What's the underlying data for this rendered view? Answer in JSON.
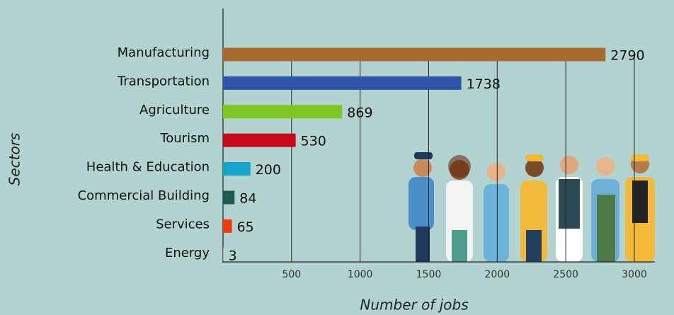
{
  "chart_data": {
    "type": "bar",
    "orientation": "horizontal",
    "categories": [
      "Manufacturing",
      "Transportation",
      "Agriculture",
      "Tourism",
      "Health & Education",
      "Commercial Building",
      "Services",
      "Energy"
    ],
    "values": [
      2790,
      1738,
      869,
      530,
      200,
      84,
      65,
      3
    ],
    "colors": [
      "#a86a2f",
      "#2e55a6",
      "#7ec622",
      "#c8091a",
      "#17a3c9",
      "#1b5a4f",
      "#f23c10",
      "#e8a548"
    ],
    "xlabel": "Number of jobs",
    "ylabel": "Sectors",
    "xlim": [
      0,
      3150
    ],
    "xticks": [
      500,
      1000,
      1500,
      2000,
      2500,
      3000
    ],
    "grid": true
  }
}
